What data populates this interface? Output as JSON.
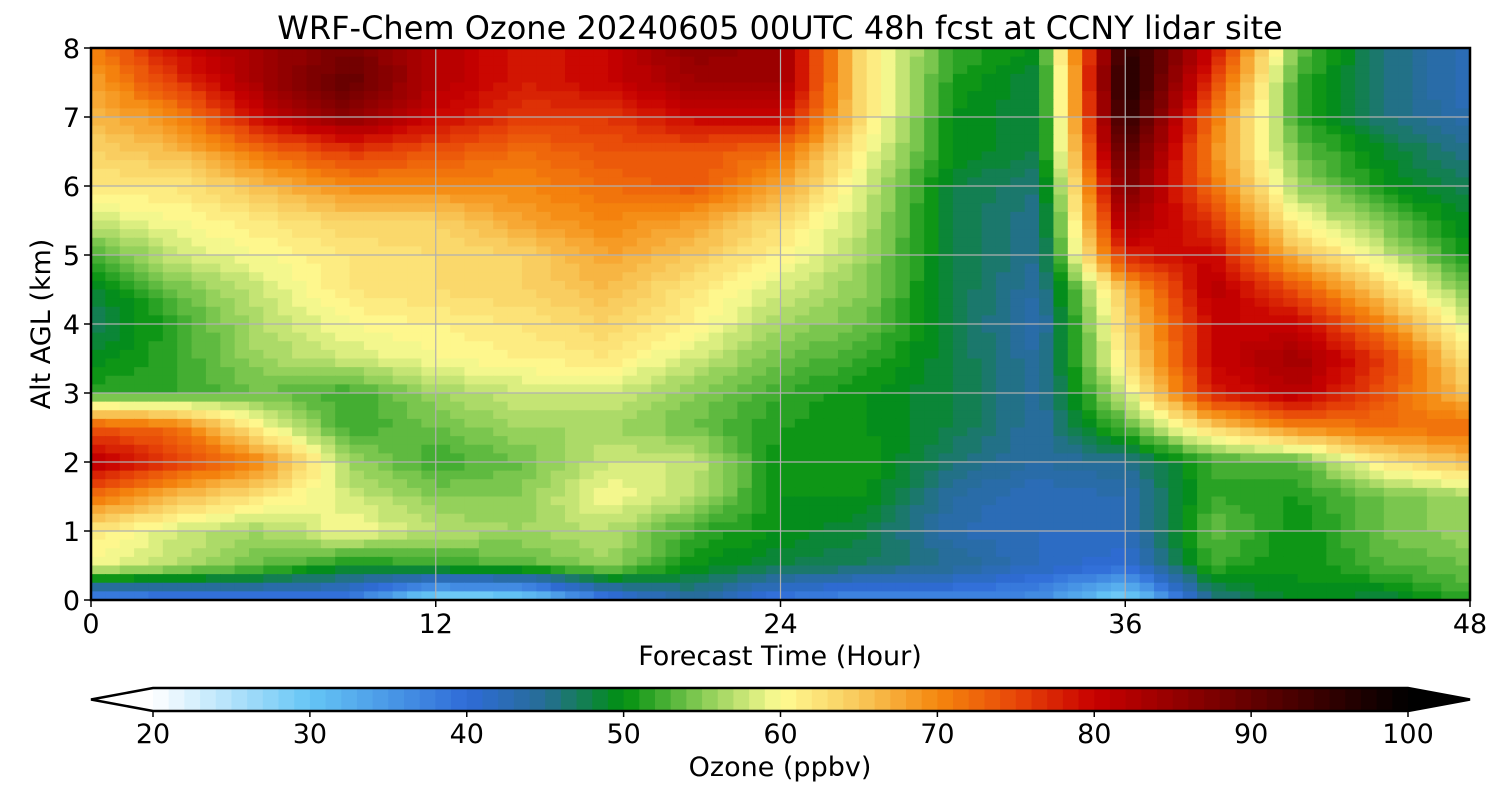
{
  "chart_data": {
    "type": "heatmap",
    "subtype": "filled-contour",
    "title": "WRF-Chem Ozone  20240605 00UTC 48h fcst at CCNY lidar site",
    "xlabel": "Forecast Time (Hour)",
    "ylabel": "Alt AGL (km)",
    "x_ticks": [
      0,
      12,
      24,
      36,
      48
    ],
    "y_ticks": [
      0,
      1,
      2,
      3,
      4,
      5,
      6,
      7,
      8
    ],
    "xlim": [
      0,
      48
    ],
    "ylim": [
      0,
      8
    ],
    "grid": true,
    "x": [
      0,
      3,
      6,
      9,
      12,
      15,
      18,
      21,
      24,
      27,
      30,
      33,
      36,
      39,
      42,
      45,
      48
    ],
    "y": [
      0,
      0.5,
      1,
      1.5,
      2,
      2.5,
      3,
      3.5,
      4,
      4.5,
      5,
      5.5,
      6,
      6.5,
      7,
      7.5,
      8
    ],
    "z": [
      [
        35,
        37,
        38,
        38,
        26,
        27,
        38,
        44,
        38,
        36,
        37,
        36,
        27,
        45,
        50,
        48,
        52
      ],
      [
        60,
        57,
        54,
        50,
        52,
        53,
        56,
        50,
        48,
        47,
        45,
        42,
        40,
        52,
        50,
        53,
        54
      ],
      [
        62,
        58,
        56,
        60,
        57,
        56,
        57,
        52,
        50,
        48,
        43,
        42,
        42,
        54,
        50,
        54,
        56
      ],
      [
        72,
        66,
        62,
        58,
        55,
        55,
        60,
        57,
        50,
        50,
        44,
        42,
        43,
        52,
        51,
        54,
        56
      ],
      [
        82,
        76,
        70,
        56,
        52,
        54,
        58,
        58,
        50,
        51,
        46,
        44,
        45,
        52,
        53,
        62,
        66
      ],
      [
        74,
        72,
        60,
        52,
        54,
        56,
        56,
        54,
        51,
        50,
        48,
        44,
        53,
        64,
        70,
        72,
        72
      ],
      [
        52,
        52,
        54,
        52,
        56,
        58,
        58,
        55,
        52,
        50,
        48,
        44,
        58,
        78,
        82,
        74,
        65
      ],
      [
        49,
        52,
        56,
        58,
        60,
        61,
        62,
        58,
        54,
        52,
        48,
        44,
        62,
        80,
        84,
        76,
        62
      ],
      [
        47,
        52,
        57,
        60,
        61,
        62,
        64,
        61,
        56,
        54,
        48,
        43,
        64,
        80,
        80,
        70,
        58
      ],
      [
        48,
        54,
        58,
        62,
        63,
        64,
        66,
        62,
        58,
        55,
        48,
        44,
        66,
        82,
        74,
        64,
        54
      ],
      [
        52,
        58,
        60,
        62,
        63,
        64,
        68,
        65,
        61,
        56,
        48,
        45,
        78,
        80,
        66,
        58,
        50
      ],
      [
        58,
        60,
        62,
        64,
        64,
        68,
        70,
        68,
        63,
        57,
        48,
        45,
        84,
        76,
        60,
        54,
        49
      ],
      [
        62,
        62,
        66,
        70,
        70,
        70,
        72,
        74,
        68,
        58,
        48,
        46,
        88,
        72,
        56,
        50,
        47
      ],
      [
        64,
        66,
        72,
        76,
        74,
        72,
        74,
        74,
        72,
        60,
        50,
        48,
        92,
        70,
        54,
        49,
        45
      ],
      [
        66,
        70,
        80,
        86,
        80,
        76,
        76,
        80,
        80,
        62,
        50,
        48,
        96,
        72,
        52,
        46,
        43
      ],
      [
        68,
        76,
        84,
        90,
        82,
        78,
        80,
        84,
        84,
        62,
        51,
        48,
        98,
        76,
        52,
        46,
        42
      ],
      [
        70,
        80,
        84,
        88,
        82,
        78,
        80,
        86,
        84,
        62,
        52,
        50,
        96,
        80,
        54,
        46,
        42
      ]
    ],
    "colorbar": {
      "label": "Ozone  (ppbv)",
      "ticks": [
        20,
        30,
        40,
        50,
        60,
        70,
        80,
        90,
        100
      ],
      "range": [
        20,
        100
      ],
      "step": 1,
      "extend": "both",
      "colormap_anchors": [
        {
          "v": 20,
          "c": "#ffffff"
        },
        {
          "v": 30,
          "c": "#65c5f5"
        },
        {
          "v": 40,
          "c": "#2f6bd8"
        },
        {
          "v": 45,
          "c": "#266d94"
        },
        {
          "v": 50,
          "c": "#00900f"
        },
        {
          "v": 55,
          "c": "#88cc55"
        },
        {
          "v": 60,
          "c": "#fffc93"
        },
        {
          "v": 65,
          "c": "#f8c85a"
        },
        {
          "v": 70,
          "c": "#f5880e"
        },
        {
          "v": 75,
          "c": "#e84608"
        },
        {
          "v": 80,
          "c": "#c80000"
        },
        {
          "v": 90,
          "c": "#640000"
        },
        {
          "v": 100,
          "c": "#000000"
        }
      ]
    }
  }
}
